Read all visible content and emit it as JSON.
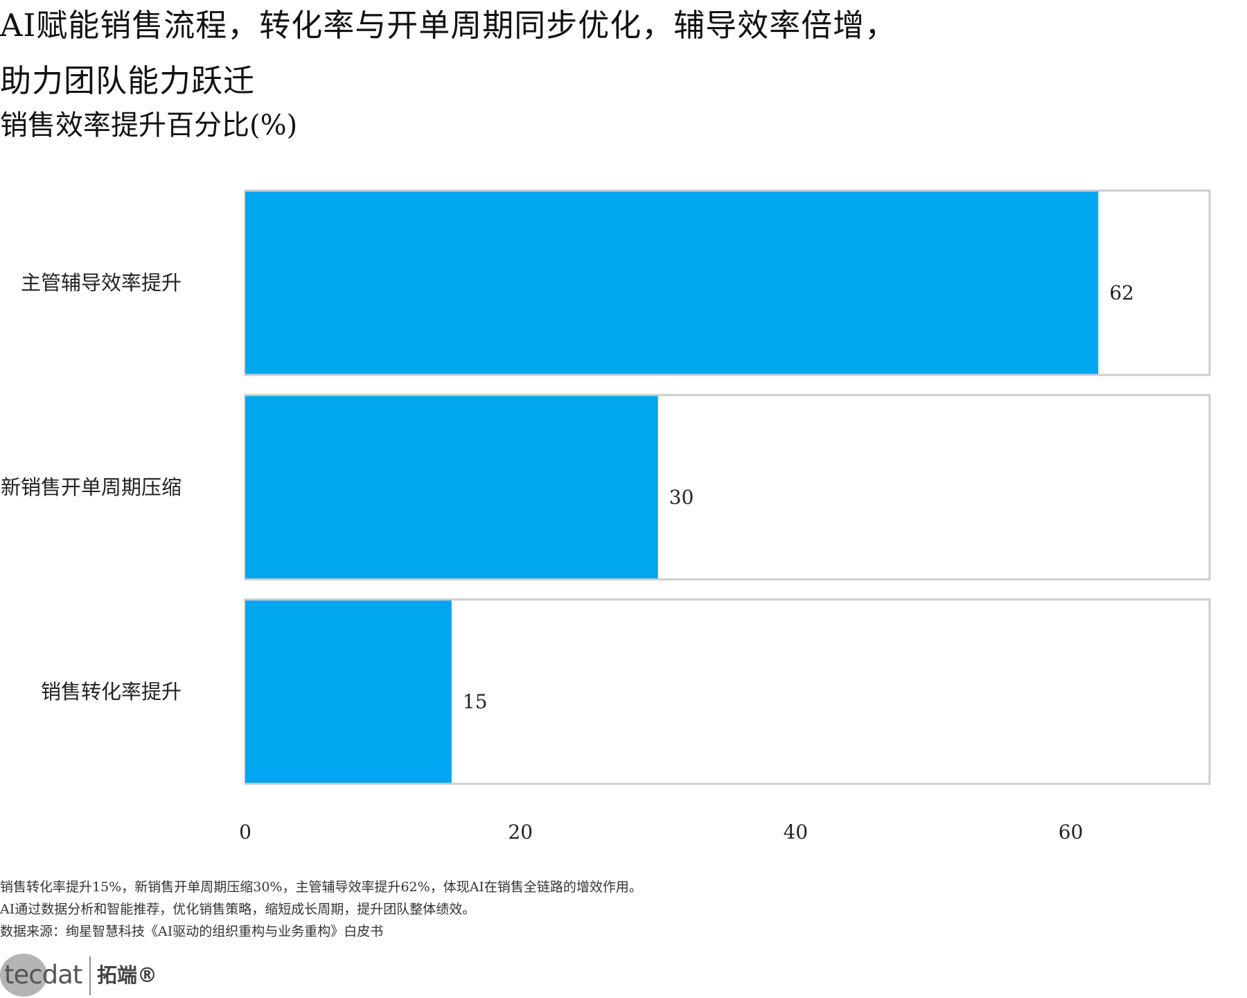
{
  "title_lines": [
    "AI赋能销售流程，转化率与开单周期同步优化，辅导效率倍增，",
    "助力团队能力跃迁"
  ],
  "subtitle": "销售效率提升百分比(%)",
  "colors": {
    "bar": "#00a7f0",
    "track_border": "#cccccc",
    "track_fill": "#ffffff"
  },
  "chart_data": {
    "type": "bar",
    "orientation": "horizontal",
    "categories": [
      "主管辅导效率提升",
      "新销售开单周期压缩",
      "销售转化率提升"
    ],
    "values": [
      62,
      30,
      15
    ],
    "xlim": [
      0,
      70
    ],
    "xticks": [
      0,
      20,
      40,
      60
    ],
    "xlabel": "",
    "ylabel": "",
    "grid": false,
    "legend": "none"
  },
  "footnotes": [
    "销售转化率提升15%，新销售开单周期压缩30%，主管辅导效率提升62%，体现AI在销售全链路的增效作用。",
    "AI通过数据分析和智能推荐，优化销售策略，缩短成长周期，提升团队整体绩效。",
    "数据来源：绚星智慧科技《AI驱动的组织重构与业务重构》白皮书"
  ],
  "logo": {
    "latin": "tecdat",
    "chinese": "拓端®"
  }
}
